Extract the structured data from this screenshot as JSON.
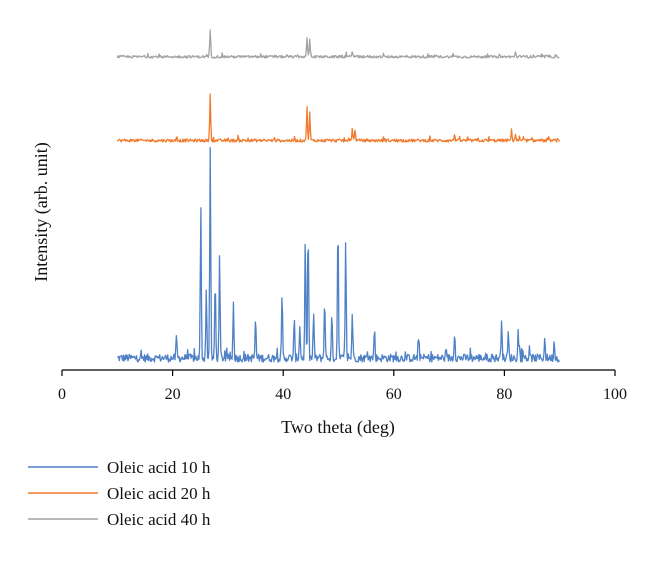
{
  "chart_data": {
    "type": "line",
    "title": "",
    "xlabel": "Two theta (deg)",
    "ylabel": "Intensity (arb. unit)",
    "xlim": [
      0,
      100
    ],
    "xticks": [
      "0",
      "20",
      "40",
      "60",
      "80",
      "100"
    ],
    "yticks": [],
    "grid": false,
    "legend_position": "bottom-left",
    "series": [
      {
        "name": "Oleic acid 10 h",
        "color": "#4f81c7",
        "peaks": [
          {
            "x": 20.7,
            "y": 0.1
          },
          {
            "x": 25.1,
            "y": 0.72
          },
          {
            "x": 26.1,
            "y": 0.32
          },
          {
            "x": 26.8,
            "y": 1.0
          },
          {
            "x": 27.7,
            "y": 0.38
          },
          {
            "x": 28.5,
            "y": 0.48
          },
          {
            "x": 31.0,
            "y": 0.26
          },
          {
            "x": 35.0,
            "y": 0.19
          },
          {
            "x": 39.8,
            "y": 0.3
          },
          {
            "x": 42.0,
            "y": 0.18
          },
          {
            "x": 43.0,
            "y": 0.16
          },
          {
            "x": 44.0,
            "y": 0.57
          },
          {
            "x": 44.5,
            "y": 0.62
          },
          {
            "x": 45.5,
            "y": 0.22
          },
          {
            "x": 47.5,
            "y": 0.29
          },
          {
            "x": 48.8,
            "y": 0.2
          },
          {
            "x": 49.9,
            "y": 0.67
          },
          {
            "x": 51.3,
            "y": 0.55
          },
          {
            "x": 52.5,
            "y": 0.22
          },
          {
            "x": 56.5,
            "y": 0.14
          },
          {
            "x": 64.5,
            "y": 0.1
          },
          {
            "x": 71.0,
            "y": 0.13
          },
          {
            "x": 79.5,
            "y": 0.2
          },
          {
            "x": 80.7,
            "y": 0.12
          },
          {
            "x": 82.5,
            "y": 0.13
          },
          {
            "x": 87.3,
            "y": 0.09
          },
          {
            "x": 89.0,
            "y": 0.08
          }
        ]
      },
      {
        "name": "Oleic acid 20 h",
        "color": "#f07b2e",
        "peaks": [
          {
            "x": 26.8,
            "y": 0.22
          },
          {
            "x": 44.3,
            "y": 0.16
          },
          {
            "x": 44.8,
            "y": 0.13
          },
          {
            "x": 52.5,
            "y": 0.06
          },
          {
            "x": 53.0,
            "y": 0.05
          },
          {
            "x": 71.0,
            "y": 0.03
          },
          {
            "x": 81.3,
            "y": 0.05
          },
          {
            "x": 82.0,
            "y": 0.03
          }
        ]
      },
      {
        "name": "Oleic acid 40 h",
        "color": "#a3a3a3",
        "peaks": [
          {
            "x": 26.8,
            "y": 0.13
          },
          {
            "x": 44.3,
            "y": 0.09
          },
          {
            "x": 44.8,
            "y": 0.08
          },
          {
            "x": 52.5,
            "y": 0.03
          },
          {
            "x": 82.0,
            "y": 0.02
          }
        ]
      }
    ]
  }
}
